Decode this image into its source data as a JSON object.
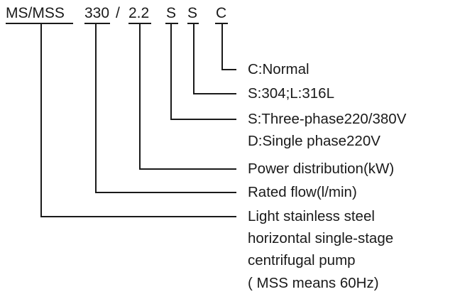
{
  "model_code": {
    "series": "MS/MSS",
    "flow": "330",
    "separator": "/",
    "power": "2.2",
    "material": "S",
    "phase": "S",
    "seal": "C"
  },
  "descriptions": {
    "seal": "C:Normal",
    "material": "S:304;L:316L",
    "phase_line1": "S:Three-phase220/380V",
    "phase_line2": "D:Single phase220V",
    "power": "Power distribution(kW)",
    "flow": "Rated flow(l/min)",
    "series_line1": "Light stainless steel",
    "series_line2": "horizontal single-stage",
    "series_line3": "centrifugal pump",
    "series_line4": "( MSS means 60Hz)"
  },
  "colors": {
    "ink": "#1a1a1a",
    "background": "#ffffff"
  }
}
